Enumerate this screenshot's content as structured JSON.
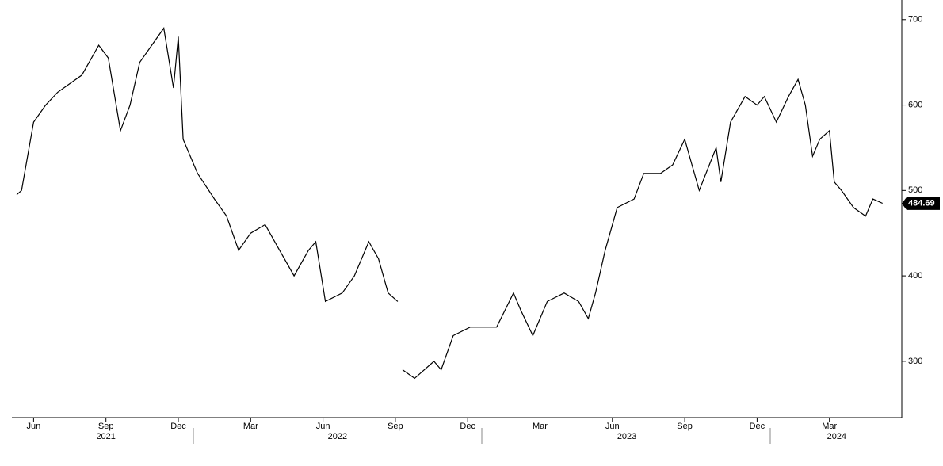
{
  "chart_data": {
    "type": "line",
    "x": [
      0.8,
      1.0,
      1.5,
      2.0,
      2.5,
      3.0,
      3.5,
      4.0,
      4.2,
      4.6,
      5.1,
      5.5,
      5.9,
      6.4,
      6.9,
      7.3,
      7.5,
      7.7,
      8.3,
      9.0,
      9.5,
      10.0,
      10.5,
      11.1,
      11.7,
      12.3,
      12.9,
      13.2,
      13.6,
      14.3,
      14.8,
      15.4,
      15.8,
      16.2,
      16.6,
      16.7,
      16.8,
      17.3,
      18.1,
      18.4,
      18.9,
      19.6,
      20.2,
      20.7,
      21.4,
      21.7,
      22.2,
      22.8,
      23.5,
      24.1,
      24.5,
      24.8,
      25.2,
      25.7,
      26.4,
      26.8,
      27.5,
      28.0,
      28.5,
      28.8,
      29.1,
      29.8,
      30.0,
      30.4,
      31.0,
      31.5,
      31.8,
      32.3,
      32.8,
      33.2,
      33.5,
      33.8,
      34.1,
      34.5,
      34.7,
      35.0,
      35.5,
      36.0,
      36.3,
      36.7
    ],
    "values": [
      495,
      500,
      580,
      600,
      615,
      625,
      635,
      660,
      670,
      655,
      570,
      600,
      650,
      670,
      690,
      620,
      680,
      560,
      520,
      490,
      470,
      430,
      450,
      460,
      430,
      400,
      430,
      440,
      370,
      380,
      400,
      440,
      420,
      380,
      370,
      null,
      290,
      280,
      300,
      290,
      330,
      340,
      340,
      340,
      380,
      360,
      330,
      370,
      380,
      370,
      350,
      380,
      430,
      480,
      490,
      520,
      520,
      530,
      560,
      530,
      500,
      550,
      510,
      580,
      610,
      600,
      610,
      580,
      610,
      630,
      600,
      540,
      560,
      570,
      510,
      500,
      480,
      470,
      490,
      485
    ],
    "color": "#000000",
    "last_value": 484.69,
    "xlim": [
      0.6,
      37.5
    ],
    "ylim": [
      234,
      723
    ],
    "yticks": [
      300,
      400,
      500,
      600,
      700
    ],
    "xticks": [
      {
        "value": 1.5,
        "label": "Jun"
      },
      {
        "value": 4.5,
        "label": "Sep"
      },
      {
        "value": 7.5,
        "label": "Dec"
      },
      {
        "value": 10.5,
        "label": "Mar"
      },
      {
        "value": 13.5,
        "label": "Jun"
      },
      {
        "value": 16.5,
        "label": "Sep"
      },
      {
        "value": 19.5,
        "label": "Dec"
      },
      {
        "value": 22.5,
        "label": "Mar"
      },
      {
        "value": 25.5,
        "label": "Jun"
      },
      {
        "value": 28.5,
        "label": "Sep"
      },
      {
        "value": 31.5,
        "label": "Dec"
      },
      {
        "value": 34.5,
        "label": "Mar"
      }
    ],
    "year_labels": [
      {
        "value": 4.5,
        "label": "2021"
      },
      {
        "value": 14.1,
        "label": "2022"
      },
      {
        "value": 26.1,
        "label": "2023"
      },
      {
        "value": 34.8,
        "label": "2024"
      }
    ]
  }
}
